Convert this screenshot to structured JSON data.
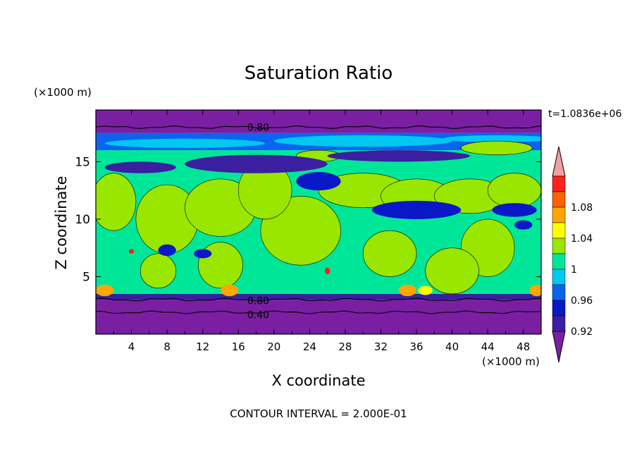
{
  "chart_data": {
    "type": "heatmap",
    "title": "Saturation Ratio",
    "xlabel": "X coordinate",
    "ylabel": "Z coordinate",
    "x_unit": "(×1000 m)",
    "y_unit": "(×1000 m)",
    "time_label": "t=1.0836e+06",
    "footer": "CONTOUR INTERVAL = 2.000E-01",
    "xlim": [
      0,
      50
    ],
    "ylim": [
      0,
      19.5
    ],
    "x_ticks": [
      "4",
      "8",
      "12",
      "16",
      "20",
      "24",
      "28",
      "32",
      "36",
      "40",
      "44",
      "48"
    ],
    "y_ticks": [
      "5",
      "10",
      "15"
    ],
    "contour_labels": [
      {
        "text": "0.80",
        "x": 17,
        "y": 18
      },
      {
        "text": "0.80",
        "x": 17,
        "y": 2.9
      },
      {
        "text": "0.40",
        "x": 17,
        "y": 1.7
      }
    ],
    "colorbar": {
      "tick_labels": [
        "1.08",
        "1.04",
        "1",
        "0.96",
        "0.92"
      ],
      "levels": [
        {
          "lo": null,
          "hi": 0.9,
          "color": "#7a1fa2"
        },
        {
          "lo": 0.9,
          "hi": 0.92,
          "color": "#3a1fa0"
        },
        {
          "lo": 0.92,
          "hi": 0.94,
          "color": "#0a18c8"
        },
        {
          "lo": 0.94,
          "hi": 0.96,
          "color": "#0a64f0"
        },
        {
          "lo": 0.96,
          "hi": 0.98,
          "color": "#00c8f0"
        },
        {
          "lo": 0.98,
          "hi": 1.0,
          "color": "#00e699"
        },
        {
          "lo": 1.0,
          "hi": 1.02,
          "color": "#99e600"
        },
        {
          "lo": 1.02,
          "hi": 1.04,
          "color": "#ffff00"
        },
        {
          "lo": 1.04,
          "hi": 1.06,
          "color": "#ffa500"
        },
        {
          "lo": 1.06,
          "hi": 1.08,
          "color": "#ff6000"
        },
        {
          "lo": 1.08,
          "hi": 1.1,
          "color": "#ff2020"
        },
        {
          "lo": 1.1,
          "hi": null,
          "color": "#f0a0a0"
        }
      ]
    },
    "fields": {
      "uniform_low": {
        "z": [
          0,
          3.0
        ],
        "color": "#7a1fa2"
      },
      "surface_layer": {
        "z": [
          3.0,
          3.5
        ],
        "color": "#3a1fa0"
      },
      "bulk": {
        "z": [
          3.5,
          13.5
        ],
        "color": "#00e699"
      },
      "upper_bulk": {
        "z": [
          13.5,
          16.0
        ],
        "color": "#00e699"
      },
      "jet_layer": {
        "z": [
          16.0,
          17.5
        ],
        "color": "#0a64f0"
      },
      "top": {
        "z": [
          17.5,
          19.5
        ],
        "color": "#7a1fa2"
      }
    },
    "green_blobs": [
      {
        "x": 2,
        "z": 11.5,
        "rx": 2.5,
        "rz": 2.5
      },
      {
        "x": 8,
        "z": 10,
        "rx": 3.5,
        "rz": 3
      },
      {
        "x": 14,
        "z": 11,
        "rx": 4,
        "rz": 2.5
      },
      {
        "x": 23,
        "z": 9,
        "rx": 4.5,
        "rz": 3
      },
      {
        "x": 19,
        "z": 12.5,
        "rx": 3,
        "rz": 2.5
      },
      {
        "x": 30,
        "z": 12.5,
        "rx": 5,
        "rz": 1.5
      },
      {
        "x": 36,
        "z": 12,
        "rx": 4,
        "rz": 1.5
      },
      {
        "x": 42,
        "z": 12,
        "rx": 4,
        "rz": 1.5
      },
      {
        "x": 47,
        "z": 12.5,
        "rx": 3,
        "rz": 1.5
      },
      {
        "x": 33,
        "z": 7,
        "rx": 3,
        "rz": 2
      },
      {
        "x": 44,
        "z": 7.5,
        "rx": 3,
        "rz": 2.5
      },
      {
        "x": 14,
        "z": 6,
        "rx": 2.5,
        "rz": 2
      },
      {
        "x": 40,
        "z": 5.5,
        "rx": 3,
        "rz": 2
      },
      {
        "x": 7,
        "z": 5.5,
        "rx": 2,
        "rz": 1.5
      },
      {
        "x": 45,
        "z": 16.2,
        "rx": 4,
        "rz": 0.6
      },
      {
        "x": 25,
        "z": 15.5,
        "rx": 2.5,
        "rz": 0.5
      }
    ],
    "dry_pockets": [
      {
        "x": 25,
        "z": 13.3,
        "rx": 2.5,
        "rz": 0.8,
        "color": "#0a18c8"
      },
      {
        "x": 36,
        "z": 10.8,
        "rx": 5,
        "rz": 0.8,
        "color": "#0a18c8"
      },
      {
        "x": 47,
        "z": 10.8,
        "rx": 2.5,
        "rz": 0.6,
        "color": "#0a18c8"
      },
      {
        "x": 18,
        "z": 14.8,
        "rx": 8,
        "rz": 0.8,
        "color": "#3a1fa0"
      },
      {
        "x": 34,
        "z": 15.5,
        "rx": 8,
        "rz": 0.5,
        "color": "#3a1fa0"
      },
      {
        "x": 5,
        "z": 14.5,
        "rx": 4,
        "rz": 0.5,
        "color": "#3a1fa0"
      },
      {
        "x": 8,
        "z": 7.3,
        "rx": 1,
        "rz": 0.5,
        "color": "#0a18c8"
      },
      {
        "x": 12,
        "z": 7,
        "rx": 1,
        "rz": 0.4,
        "color": "#0a18c8"
      },
      {
        "x": 48,
        "z": 9.5,
        "rx": 1,
        "rz": 0.4,
        "color": "#0a18c8"
      }
    ],
    "moist_spots": [
      {
        "x": 1,
        "z": 3.8,
        "rx": 1.0,
        "rz": 0.5,
        "color": "#ffa500"
      },
      {
        "x": 15,
        "z": 3.8,
        "rx": 1.0,
        "rz": 0.5,
        "color": "#ffa500"
      },
      {
        "x": 35,
        "z": 3.8,
        "rx": 1.0,
        "rz": 0.5,
        "color": "#ffa500"
      },
      {
        "x": 49.5,
        "z": 3.8,
        "rx": 0.8,
        "rz": 0.5,
        "color": "#ffa500"
      },
      {
        "x": 37,
        "z": 3.8,
        "rx": 0.8,
        "rz": 0.4,
        "color": "#ffff00"
      },
      {
        "x": 26,
        "z": 5.5,
        "rx": 0.3,
        "rz": 0.3,
        "color": "#ff2020"
      },
      {
        "x": 4,
        "z": 7.2,
        "rx": 0.3,
        "rz": 0.2,
        "color": "#ff2020"
      }
    ],
    "contour_lines": [
      {
        "z": 18.0,
        "value": 0.8
      },
      {
        "z": 3.0,
        "value": 0.8
      },
      {
        "z": 1.9,
        "value": 0.4
      }
    ]
  }
}
